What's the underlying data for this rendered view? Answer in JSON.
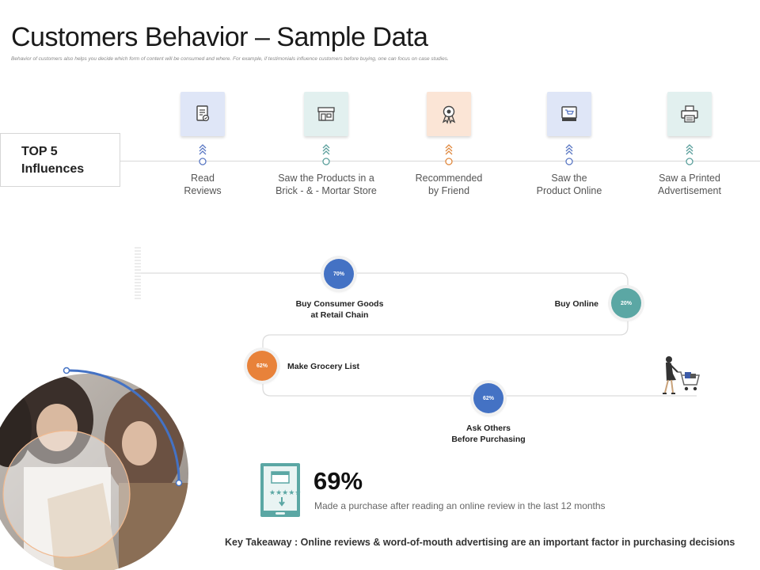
{
  "header": {
    "title": "Customers Behavior – Sample Data",
    "subtitle": "Behavior of customers also helps you decide which form of content will be consumed and where. For example, if testimonials influence customers before buying, one can focus on case studies."
  },
  "top_influences": {
    "heading_line1": "TOP 5",
    "heading_line2": "Influences",
    "items": [
      {
        "line1": "Read",
        "line2": "Reviews",
        "icon": "document-review-icon",
        "tile_color": "#dfe6f7",
        "accent": "#5a78c4"
      },
      {
        "line1": "Saw the Products in a",
        "line2": "Brick - & - Mortar Store",
        "icon": "storefront-icon",
        "tile_color": "#e2f0ef",
        "accent": "#5a9f9c"
      },
      {
        "line1": "Recommended",
        "line2": "by Friend",
        "icon": "award-badge-icon",
        "tile_color": "#fbe5d6",
        "accent": "#e0893f"
      },
      {
        "line1": "Saw the",
        "line2": "Product Online",
        "icon": "monitor-cart-icon",
        "tile_color": "#dfe6f7",
        "accent": "#5a78c4"
      },
      {
        "line1": "Saw a Printed",
        "line2": "Advertisement",
        "icon": "printer-icon",
        "tile_color": "#e2f0ef",
        "accent": "#5a9f9c"
      }
    ]
  },
  "journey": {
    "nodes": [
      {
        "percent": "70%",
        "line1": "Buy Consumer Goods",
        "line2": "at Retail Chain",
        "color": "#4472c4"
      },
      {
        "percent": "20%",
        "line1": "Buy Online",
        "line2": "",
        "color": "#5ba7a4"
      },
      {
        "percent": "62%",
        "line1": "Make Grocery List",
        "line2": "",
        "color": "#e8823a"
      },
      {
        "percent": "62%",
        "line1": "Ask Others",
        "line2": "Before Purchasing",
        "color": "#4472c4"
      }
    ]
  },
  "stat": {
    "value": "69%",
    "description": "Made a purchase after reading an online review in the last 12 months",
    "icon": "phone-review-icon",
    "color": "#5ba7a4"
  },
  "takeaway": "Key Takeaway : Online reviews & word-of-mouth advertising are an important factor in purchasing decisions",
  "decor": {
    "photo": "shopping-women-photo",
    "shopper": "shopper-with-cart-icon",
    "arc_color": "#4472c4"
  }
}
